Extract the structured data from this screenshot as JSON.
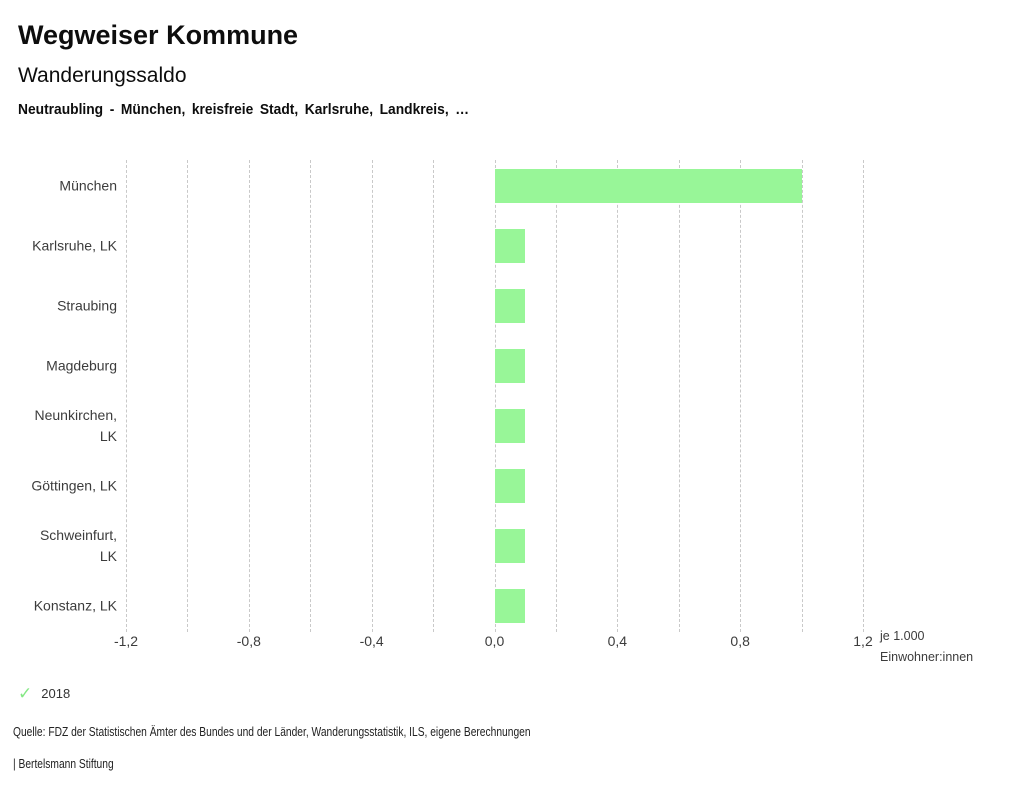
{
  "header": {
    "title": "Wegweiser Kommune",
    "subtitle": "Wanderungssaldo",
    "comparison": "Neutraubling - München, kreisfreie Stadt, Karlsruhe, Landkreis, …"
  },
  "chart_data": {
    "type": "bar",
    "orientation": "horizontal",
    "title": "Wanderungssaldo",
    "categories": [
      "München",
      "Karlsruhe, LK",
      "Straubing",
      "Magdeburg",
      "Neunkirchen, LK",
      "Göttingen, LK",
      "Schweinfurt, LK",
      "Konstanz, LK"
    ],
    "label_lines": [
      [
        "München"
      ],
      [
        "Karlsruhe, LK"
      ],
      [
        "Straubing"
      ],
      [
        "Magdeburg"
      ],
      [
        "Neunkirchen,",
        "LK"
      ],
      [
        "Göttingen, LK"
      ],
      [
        "Schweinfurt,",
        "LK"
      ],
      [
        "Konstanz, LK"
      ]
    ],
    "series": [
      {
        "name": "2018",
        "values": [
          1.0,
          0.1,
          0.1,
          0.1,
          0.1,
          0.1,
          0.1,
          0.1
        ]
      }
    ],
    "xlabel": "je 1.000 Einwohner:innen",
    "unit_label_lines": [
      "je 1.000",
      "Einwohner:innen"
    ],
    "xlim": [
      -1.2,
      1.2
    ],
    "x_tick_step": 0.4,
    "x_tick_labels": [
      "-1,2",
      "-0,8",
      "-0,4",
      "0,0",
      "0,4",
      "0,8",
      "1,2"
    ],
    "gridline_step": 0.2,
    "grid": true,
    "legend_position": "bottom-left",
    "bar_color": "#98f698",
    "gridline_color": "#c9c9c9"
  },
  "legend": {
    "check_icon": "checkmark",
    "check_color": "#85e885",
    "year_label": "2018"
  },
  "footer": {
    "source": "Quelle: FDZ der Statistischen Ämter des Bundes und der Länder, Wanderungsstatistik, ILS, eigene Berechnungen",
    "attribution": "| Bertelsmann Stiftung"
  }
}
